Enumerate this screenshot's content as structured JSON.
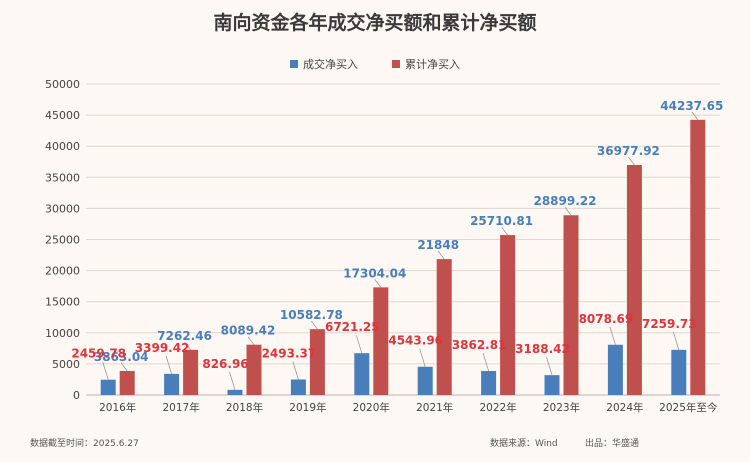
{
  "title": "南向资金各年成交净买额和累计净买额",
  "footer": {
    "date_label": "数据截至时间：2025.6.27",
    "source_label": "数据来源：Wind",
    "publisher_label": "出品：华盛通"
  },
  "colors": {
    "series1": "#4a7ebb",
    "series2": "#c0504d",
    "label1": "#4a7ebb",
    "label2": "#e0333a",
    "grid": "#e0d8d0",
    "axis_text": "#444444"
  },
  "chart_data": {
    "type": "bar",
    "title": "南向资金各年成交净买额和累计净买额",
    "categories": [
      "2016年",
      "2017年",
      "2018年",
      "2019年",
      "2020年",
      "2021年",
      "2022年",
      "2023年",
      "2024年",
      "2025年至今"
    ],
    "series": [
      {
        "name": "成交净买入",
        "values": [
          2459.78,
          3399.42,
          826.96,
          2493.37,
          6721.25,
          4543.96,
          3862.81,
          3188.42,
          8078.69,
          7259.73
        ],
        "labels": [
          "2459.78",
          "3399.42",
          "826.96",
          "2493.37",
          "6721.25",
          "4543.96",
          "3862.81",
          "3188.42",
          "8078.69",
          "7259.73"
        ]
      },
      {
        "name": "累计净买入",
        "values": [
          3863.04,
          7262.46,
          8089.42,
          10582.78,
          17304.04,
          21848,
          25710.81,
          28899.22,
          36977.92,
          44237.65
        ],
        "labels": [
          "3863.04",
          "7262.46",
          "8089.42",
          "10582.78",
          "17304.04",
          "21848",
          "25710.81",
          "28899.22",
          "36977.92",
          "44237.65"
        ]
      }
    ],
    "ylim": [
      0,
      50000
    ],
    "yticks": [
      "0",
      "5000",
      "10000",
      "15000",
      "20000",
      "25000",
      "30000",
      "35000",
      "40000",
      "45000",
      "50000"
    ],
    "grid": true,
    "legend_position": "top-center"
  }
}
